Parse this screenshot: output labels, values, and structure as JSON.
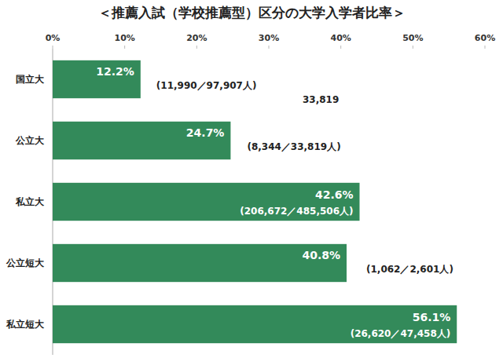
{
  "chart_data": {
    "type": "bar",
    "orientation": "horizontal",
    "title": "＜推薦入試（学校推薦型）区分の大学入学者比率＞",
    "categories": [
      "国立大",
      "公立大",
      "私立大",
      "公立短大",
      "私立短大"
    ],
    "values": [
      12.2,
      24.7,
      42.6,
      40.8,
      56.1
    ],
    "value_labels": [
      "12.2%",
      "24.7%",
      "42.6%",
      "40.8%",
      "56.1%"
    ],
    "bar_annotations": [
      "(11,990／97,907人)",
      "(8,344／33,819人)",
      "(206,672／485,506人)",
      "(1,062／2,601人)",
      "(26,620／47,458人)"
    ],
    "annotations": [
      "33,819"
    ],
    "color": "#338a5a",
    "xlim": [
      0,
      60
    ],
    "xticks": [
      {
        "value": 0,
        "label": "0%"
      },
      {
        "value": 10,
        "label": "10%"
      },
      {
        "value": 20,
        "label": "20%"
      },
      {
        "value": 30,
        "label": "30%"
      },
      {
        "value": 40,
        "label": "40%"
      },
      {
        "value": 50,
        "label": "50%"
      },
      {
        "value": 60,
        "label": "60%"
      }
    ],
    "grid": false,
    "data_labels": true
  }
}
